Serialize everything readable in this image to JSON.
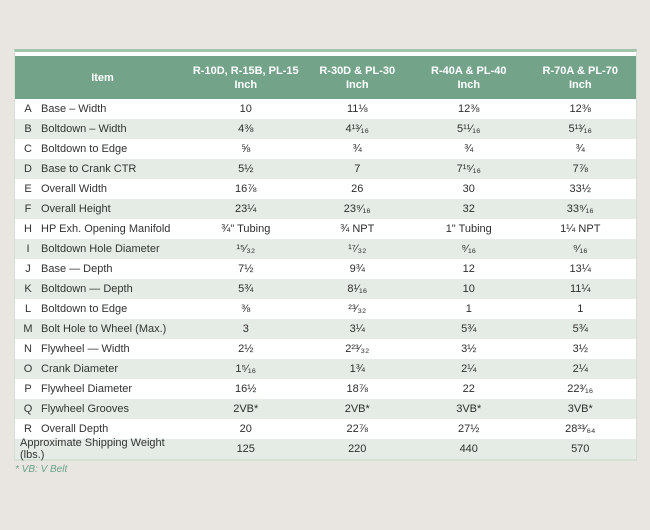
{
  "colors": {
    "header_green": "#73a489",
    "row_green": "#e5ece6",
    "accent_green": "#a2c3ab",
    "border_green": "#d4e0d4",
    "footnote_green": "#6aa488",
    "page_bg": "#e9e6e1"
  },
  "table": {
    "headers": {
      "item": "Item",
      "columns": [
        {
          "line1": "R-10D, R-15B, PL-15",
          "line2": "Inch"
        },
        {
          "line1": "R-30D & PL-30",
          "line2": "Inch"
        },
        {
          "line1": "R-40A & PL-40",
          "line2": "Inch"
        },
        {
          "line1": "R-70A & PL-70",
          "line2": "Inch"
        }
      ]
    },
    "rows": [
      {
        "letter": "A",
        "label": "Base – Width",
        "values": [
          "10",
          "11⅛",
          "12⅜",
          "12⅜"
        ]
      },
      {
        "letter": "B",
        "label": "Boltdown – Width",
        "values": [
          "4⅜",
          "4¹³⁄₁₆",
          "5¹¹⁄₁₆",
          "5¹³⁄₁₆"
        ]
      },
      {
        "letter": "C",
        "label": "Boltdown to Edge",
        "values": [
          "⅝",
          "¾",
          "¾",
          "¾"
        ]
      },
      {
        "letter": "D",
        "label": "Base to Crank CTR",
        "values": [
          "5½",
          "7",
          "7¹⁵⁄₁₆",
          "7⅞"
        ]
      },
      {
        "letter": "E",
        "label": "Overall Width",
        "values": [
          "16⅞",
          "26",
          "30",
          "33½"
        ]
      },
      {
        "letter": "F",
        "label": "Overall Height",
        "values": [
          "23¼",
          "23⁹⁄₁₆",
          "32",
          "33⁹⁄₁₆"
        ]
      },
      {
        "letter": "H",
        "label": "HP Exh. Opening Manifold",
        "values": [
          "¾\" Tubing",
          "¾ NPT",
          "1\" Tubing",
          "1¼ NPT"
        ]
      },
      {
        "letter": "I",
        "label": "Boltdown Hole Diameter",
        "values": [
          "¹⁵⁄₃₂",
          "¹⁷⁄₃₂",
          "⁹⁄₁₆",
          "⁹⁄₁₆"
        ]
      },
      {
        "letter": "J",
        "label": "Base — Depth",
        "values": [
          "7½",
          "9¾",
          "12",
          "13¼"
        ]
      },
      {
        "letter": "K",
        "label": "Boltdown — Depth",
        "values": [
          "5¾",
          "8¹⁄₁₆",
          "10",
          "11¼"
        ]
      },
      {
        "letter": "L",
        "label": "Boltdown to Edge",
        "values": [
          "⅜",
          "²³⁄₃₂",
          "1",
          "1"
        ]
      },
      {
        "letter": "M",
        "label": "Bolt Hole to Wheel (Max.)",
        "values": [
          "3",
          "3¼",
          "5¾",
          "5¾"
        ]
      },
      {
        "letter": "N",
        "label": "Flywheel — Width",
        "values": [
          "2½",
          "2²³⁄₃₂",
          "3½",
          "3½"
        ]
      },
      {
        "letter": "O",
        "label": "Crank Diameter",
        "values": [
          "1⁵⁄₁₆",
          "1¾",
          "2¼",
          "2¼"
        ]
      },
      {
        "letter": "P",
        "label": "Flywheel Diameter",
        "values": [
          "16½",
          "18⅞",
          "22",
          "22³⁄₁₆"
        ]
      },
      {
        "letter": "Q",
        "label": "Flywheel Grooves",
        "values": [
          "2VB*",
          "2VB*",
          "3VB*",
          "3VB*"
        ]
      },
      {
        "letter": "R",
        "label": "Overall Depth",
        "values": [
          "20",
          "22⅞",
          "27½",
          "28³³⁄₆₄"
        ]
      }
    ],
    "footer_row": {
      "label": "Approximate Shipping Weight (lbs.)",
      "values": [
        "125",
        "220",
        "440",
        "570"
      ]
    }
  },
  "footnote": "* VB: V Belt"
}
